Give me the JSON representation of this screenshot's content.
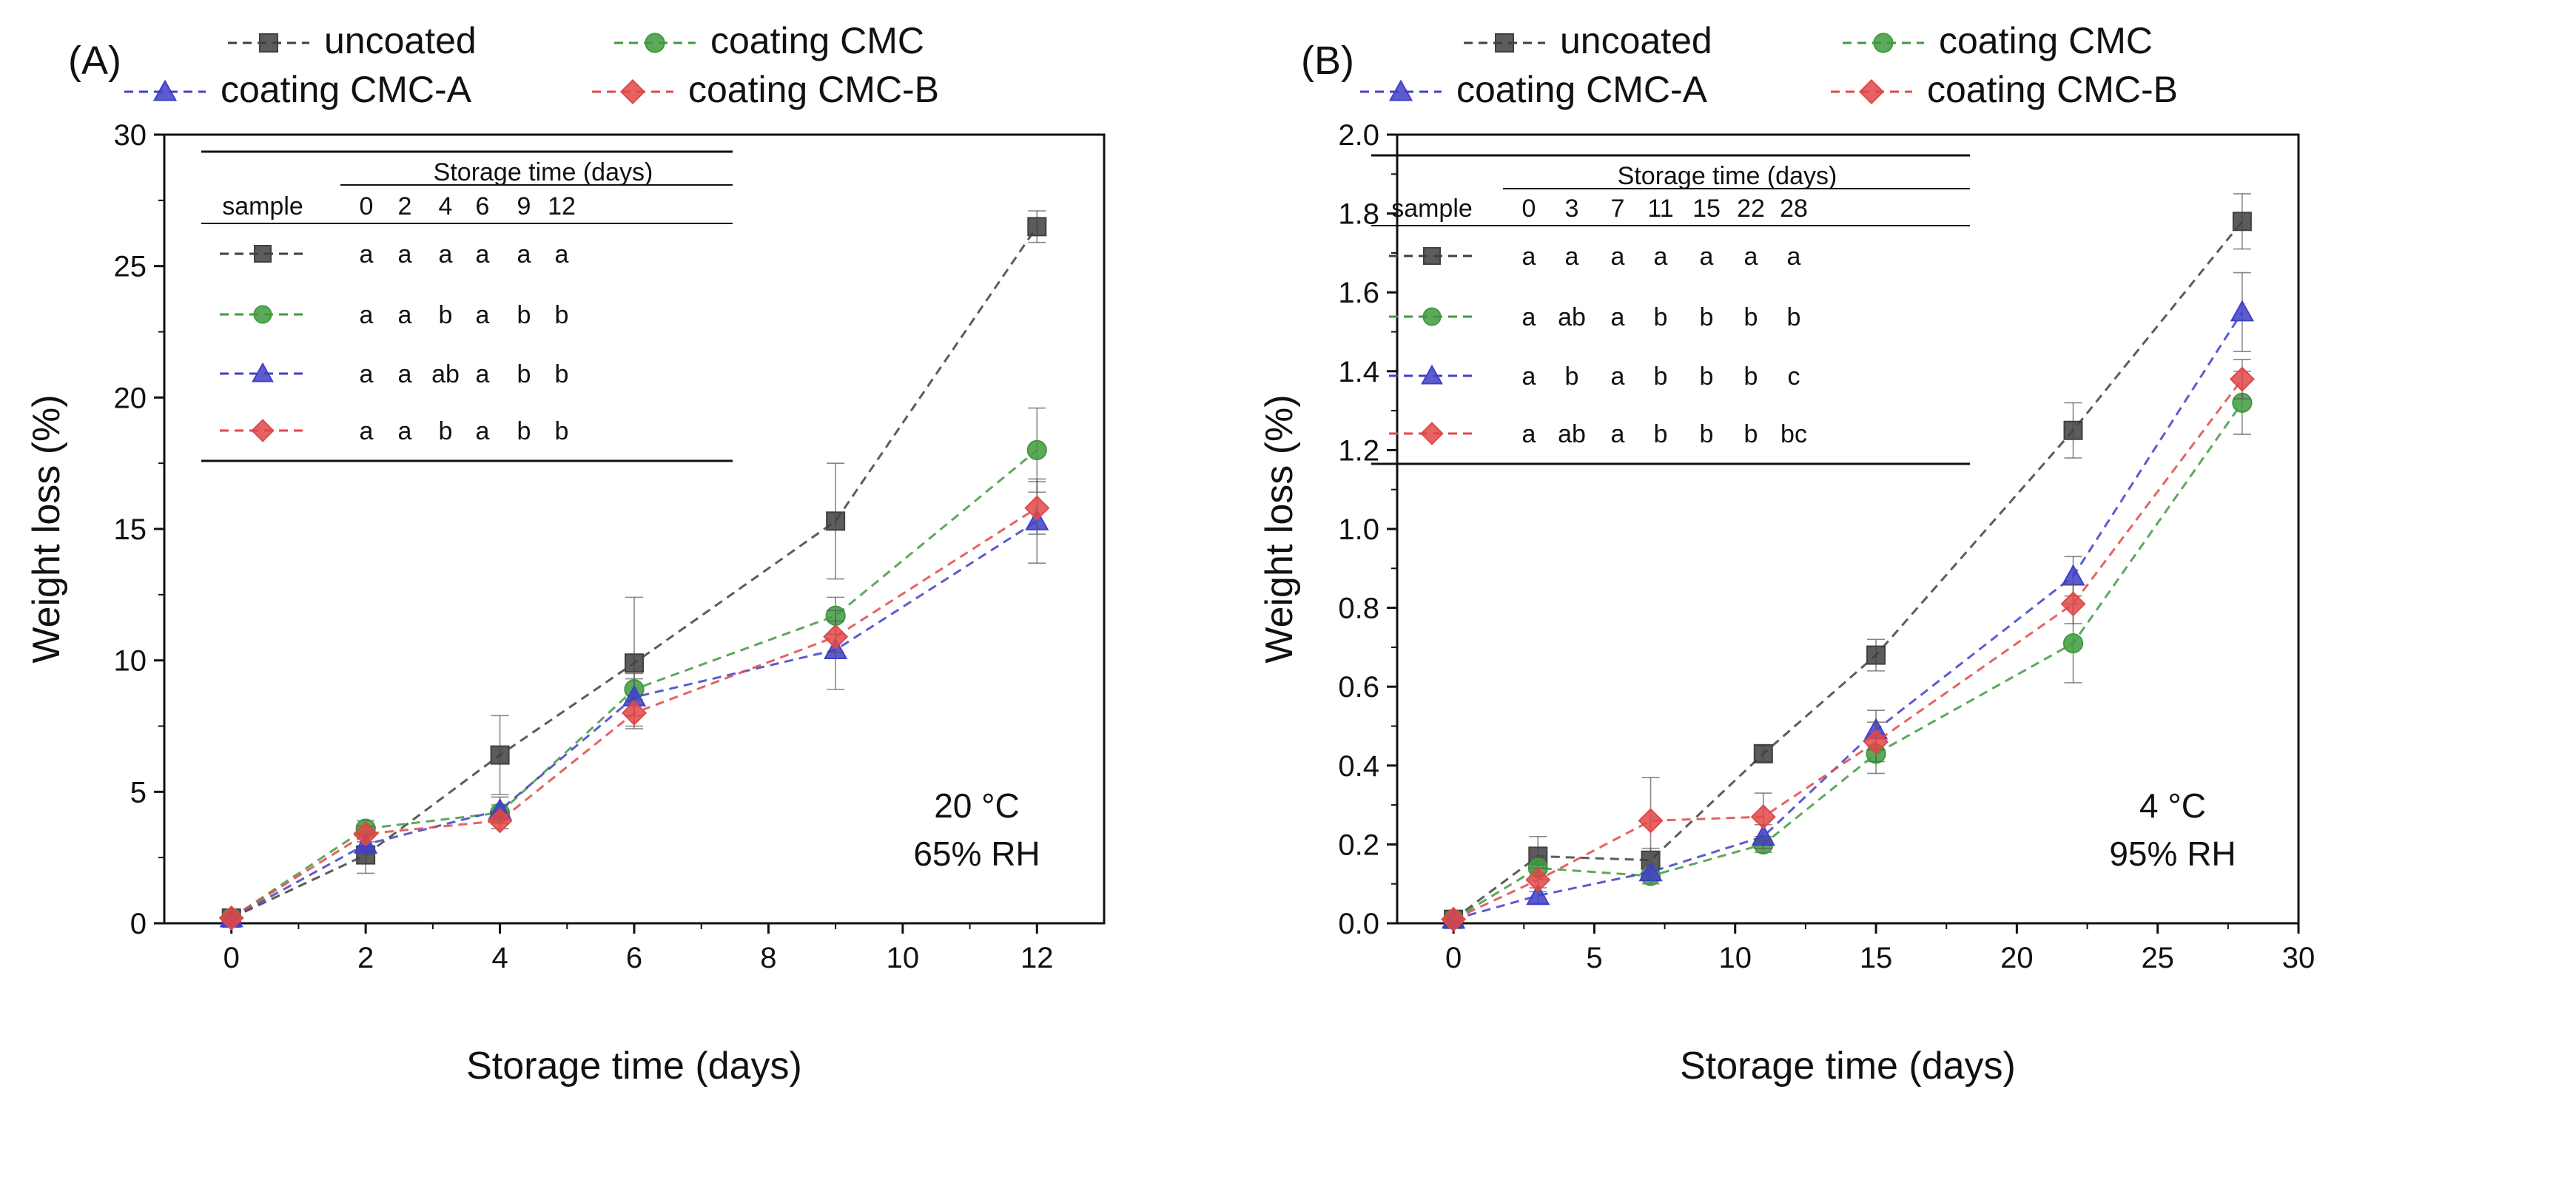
{
  "figure": {
    "panel_labels": [
      "(A)",
      "(B)"
    ]
  },
  "chart_data": [
    {
      "type": "line",
      "panel": "(A)",
      "title": "",
      "xlabel": "Storage time (days)",
      "ylabel": "Weight loss (%)",
      "xlim": [
        -1,
        13
      ],
      "ylim": [
        0,
        30
      ],
      "xticks": [
        0,
        2,
        4,
        6,
        8,
        10,
        12
      ],
      "yticks": [
        0,
        5,
        10,
        15,
        20,
        25,
        30
      ],
      "annotation": [
        "20 °C",
        "65% RH"
      ],
      "legend": [
        "uncoated",
        "coating CMC",
        "coating CMC-A",
        "coating CMC-B"
      ],
      "x": [
        0,
        2,
        4,
        6,
        9,
        12
      ],
      "series": [
        {
          "name": "uncoated",
          "color": "#404040",
          "marker": "square",
          "values": [
            0.2,
            2.6,
            6.4,
            9.9,
            15.3,
            26.5
          ],
          "errors": [
            0.1,
            0.7,
            1.5,
            2.5,
            2.2,
            0.6
          ]
        },
        {
          "name": "coating CMC",
          "color": "#3f9a3f",
          "marker": "circle",
          "values": [
            0.2,
            3.6,
            4.2,
            8.9,
            11.7,
            18.0
          ],
          "errors": [
            0.1,
            0.3,
            0.3,
            0.6,
            0.7,
            1.6
          ]
        },
        {
          "name": "coating CMC-A",
          "color": "#4040c8",
          "marker": "triangle",
          "values": [
            0.2,
            3.0,
            4.3,
            8.6,
            10.4,
            15.3
          ],
          "errors": [
            0.1,
            0.4,
            0.5,
            0.7,
            1.5,
            1.6
          ]
        },
        {
          "name": "coating CMC-B",
          "color": "#e04848",
          "marker": "diamond",
          "values": [
            0.2,
            3.4,
            3.9,
            8.0,
            10.9,
            15.8
          ],
          "errors": [
            0.1,
            0.3,
            0.3,
            0.5,
            0.6,
            1.0
          ]
        }
      ],
      "table": {
        "header": "Storage time (days)",
        "sample_label": "sample",
        "columns": [
          "0",
          "2",
          "4",
          "6",
          "9",
          "12"
        ],
        "rows": [
          [
            "a",
            "a",
            "a",
            "a",
            "a",
            "a"
          ],
          [
            "a",
            "a",
            "b",
            "a",
            "b",
            "b"
          ],
          [
            "a",
            "a",
            "ab",
            "a",
            "b",
            "b"
          ],
          [
            "a",
            "a",
            "b",
            "a",
            "b",
            "b"
          ]
        ]
      }
    },
    {
      "type": "line",
      "panel": "(B)",
      "title": "",
      "xlabel": "Storage time (days)",
      "ylabel": "Weight loss (%)",
      "xlim": [
        -2,
        30
      ],
      "ylim": [
        0.0,
        2.0
      ],
      "xticks": [
        0,
        5,
        10,
        15,
        20,
        25,
        30
      ],
      "yticks": [
        0.0,
        0.2,
        0.4,
        0.6,
        0.8,
        1.0,
        1.2,
        1.4,
        1.6,
        1.8,
        2.0
      ],
      "annotation": [
        "4 °C",
        "95% RH"
      ],
      "legend": [
        "uncoated",
        "coating CMC",
        "coating CMC-A",
        "coating CMC-B"
      ],
      "x": [
        0,
        3,
        7,
        11,
        15,
        22,
        28
      ],
      "series": [
        {
          "name": "uncoated",
          "color": "#404040",
          "marker": "square",
          "values": [
            0.01,
            0.17,
            0.16,
            0.43,
            0.68,
            1.25,
            1.78
          ],
          "errors": [
            0.01,
            0.05,
            0.03,
            0.02,
            0.04,
            0.07,
            0.07
          ]
        },
        {
          "name": "coating CMC",
          "color": "#3f9a3f",
          "marker": "circle",
          "values": [
            0.01,
            0.14,
            0.12,
            0.2,
            0.43,
            0.71,
            1.32
          ],
          "errors": [
            0.01,
            0.03,
            0.02,
            0.02,
            0.05,
            0.1,
            0.08
          ]
        },
        {
          "name": "coating CMC-A",
          "color": "#4040c8",
          "marker": "triangle",
          "values": [
            0.01,
            0.07,
            0.13,
            0.22,
            0.49,
            0.88,
            1.55
          ],
          "errors": [
            0.01,
            0.02,
            0.02,
            0.03,
            0.05,
            0.05,
            0.1
          ]
        },
        {
          "name": "coating CMC-B",
          "color": "#e04848",
          "marker": "diamond",
          "values": [
            0.01,
            0.11,
            0.26,
            0.27,
            0.46,
            0.81,
            1.38
          ],
          "errors": [
            0.01,
            0.03,
            0.11,
            0.06,
            0.05,
            0.05,
            0.05
          ]
        }
      ],
      "table": {
        "header": "Storage time (days)",
        "sample_label": "sample",
        "columns": [
          "0",
          "3",
          "7",
          "11",
          "15",
          "22",
          "28"
        ],
        "rows": [
          [
            "a",
            "a",
            "a",
            "a",
            "a",
            "a",
            "a"
          ],
          [
            "a",
            "ab",
            "a",
            "b",
            "b",
            "b",
            "b"
          ],
          [
            "a",
            "b",
            "a",
            "b",
            "b",
            "b",
            "c"
          ],
          [
            "a",
            "ab",
            "a",
            "b",
            "b",
            "b",
            "bc"
          ]
        ]
      }
    }
  ]
}
